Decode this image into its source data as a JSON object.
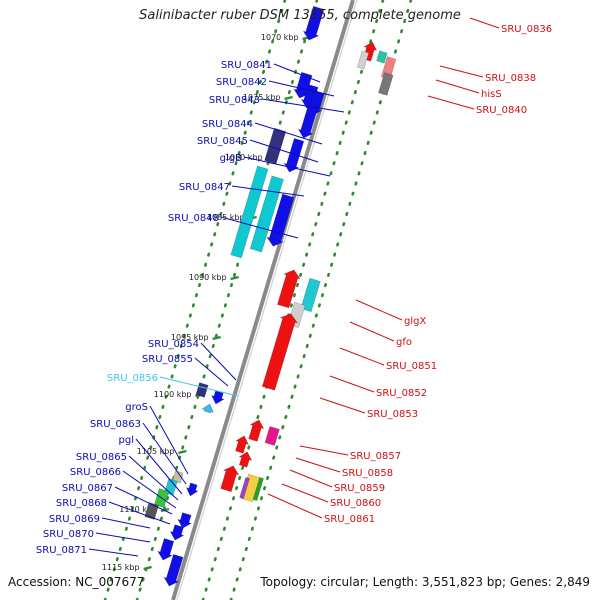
{
  "title": "Salinibacter ruber DSM 13855, complete genome",
  "footer": {
    "accession": "Accession: NC_007677",
    "summary": "Topology: circular; Length: 3,551,823 bp; Genes: 2,849"
  },
  "colors": {
    "backbone": "#8a8a8a",
    "tick": "#2e8b2e",
    "left_label": "#0a0ab4",
    "left_label_alt": "#3cc8e6",
    "right_label": "#cc1111"
  },
  "kbp_ticks": [
    "1070 kbp",
    "1075 kbp",
    "1080 kbp",
    "1085 kbp",
    "1090 kbp",
    "1095 kbp",
    "1100 kbp",
    "1105 kbp",
    "1110 kbp",
    "1115 kbp"
  ],
  "left_labels": [
    "SRU_0841",
    "SRU_0842",
    "SRU_0843",
    "SRU_0844",
    "SRU_0845",
    "glgB",
    "SRU_0847",
    "SRU_0848",
    "SRU_0854",
    "SRU_0855",
    "SRU_0856",
    "groS",
    "SRU_0863",
    "pgl",
    "SRU_0865",
    "SRU_0866",
    "SRU_0867",
    "SRU_0868",
    "SRU_0869",
    "SRU_0870",
    "SRU_0871"
  ],
  "right_labels": [
    "SRU_0836",
    "SRU_0838",
    "hisS",
    "SRU_0840",
    "glgX",
    "gfo",
    "SRU_0851",
    "SRU_0852",
    "SRU_0853",
    "SRU_0857",
    "SRU_0858",
    "SRU_0859",
    "SRU_0860",
    "SRU_0861"
  ]
}
